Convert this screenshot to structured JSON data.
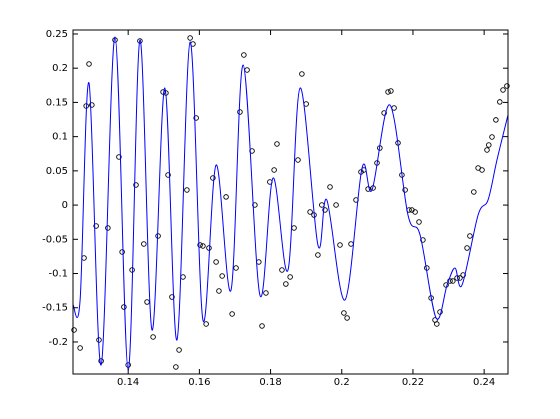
{
  "chart_data": {
    "type": "combo",
    "xlim": [
      0.1245,
      0.2467
    ],
    "ylim": [
      -0.2468,
      0.2558
    ],
    "xticks": [
      0.14,
      0.16,
      0.18,
      0.2,
      0.22,
      0.24
    ],
    "yticks": [
      -0.2,
      -0.15,
      -0.1,
      -0.05,
      0,
      0.05,
      0.1,
      0.15,
      0.2,
      0.25
    ],
    "grid": false,
    "series": [
      {
        "type": "scatter",
        "color": "#000000",
        "x": [
          0.1248,
          0.1265,
          0.1276,
          0.1282,
          0.129,
          0.1298,
          0.131,
          0.1318,
          0.1324,
          0.1343,
          0.1363,
          0.1374,
          0.1383,
          0.1388,
          0.14,
          0.1411,
          0.1422,
          0.1433,
          0.1444,
          0.1453,
          0.147,
          0.1484,
          0.1498,
          0.1506,
          0.1512,
          0.1523,
          0.1534,
          0.1543,
          0.1554,
          0.1565,
          0.1574,
          0.1582,
          0.1591,
          0.1602,
          0.161,
          0.1619,
          0.1627,
          0.1638,
          0.1647,
          0.1655,
          0.1664,
          0.1675,
          0.1692,
          0.1703,
          0.1714,
          0.1725,
          0.1734,
          0.1748,
          0.1756,
          0.1767,
          0.1776,
          0.1787,
          0.1798,
          0.181,
          0.1818,
          0.1832,
          0.1843,
          0.1855,
          0.1866,
          0.1877,
          0.1888,
          0.19,
          0.1911,
          0.1922,
          0.1933,
          0.1944,
          0.1953,
          0.1967,
          0.1984,
          0.1995,
          0.2006,
          0.2015,
          0.2026,
          0.204,
          0.2054,
          0.2062,
          0.2074,
          0.2088,
          0.2099,
          0.2107,
          0.2119,
          0.213,
          0.2138,
          0.2147,
          0.2158,
          0.2169,
          0.2178,
          0.2189,
          0.2197,
          0.2206,
          0.2217,
          0.2228,
          0.2239,
          0.2251,
          0.2262,
          0.2267,
          0.2276,
          0.2293,
          0.2304,
          0.2312,
          0.2324,
          0.2332,
          0.2341,
          0.2352,
          0.236,
          0.2371,
          0.2383,
          0.2394,
          0.2408,
          0.2413,
          0.2422,
          0.2433,
          0.2444,
          0.2453,
          0.2464
        ],
        "values": [
          -0.1825,
          -0.2088,
          -0.0773,
          0.1448,
          0.2062,
          0.1463,
          -0.0305,
          -0.1971,
          -0.2278,
          -0.0334,
          0.2412,
          0.0703,
          -0.0685,
          -0.1489,
          -0.2336,
          -0.0948,
          0.0294,
          0.2398,
          -0.0568,
          -0.1416,
          -0.1927,
          -0.0451,
          0.1653,
          0.1638,
          0.044,
          -0.1343,
          -0.2365,
          -0.2117,
          -0.105,
          0.0221,
          0.2442,
          0.2354,
          0.1273,
          -0.0583,
          -0.0597,
          -0.1737,
          -0.0627,
          0.0396,
          -0.0831,
          -0.1255,
          -0.1036,
          0.0119,
          -0.1591,
          -0.0919,
          0.136,
          0.2193,
          0.1974,
          0.0791,
          0.0002,
          -0.0831,
          -0.1766,
          -0.1284,
          0.0338,
          0.0513,
          0.0893,
          -0.0948,
          -0.1153,
          -0.105,
          -0.0334,
          0.0659,
          0.1916,
          0.1477,
          -0.0101,
          -0.0145,
          -0.0729,
          0.0002,
          -0.0071,
          0.0265,
          0.0002,
          -0.0583,
          -0.1576,
          -0.1649,
          -0.0568,
          0.0075,
          0.0484,
          0.0513,
          0.0235,
          0.025,
          0.0615,
          0.0834,
          0.1346,
          0.1653,
          0.1667,
          0.1419,
          0.0908,
          0.044,
          0.0221,
          -0.0071,
          -0.0071,
          -0.0101,
          -0.0247,
          -0.051,
          -0.0919,
          -0.1357,
          -0.1679,
          -0.1737,
          -0.1562,
          -0.1167,
          -0.1109,
          -0.1109,
          -0.1065,
          -0.1065,
          -0.1021,
          -0.0627,
          -0.0451,
          0.0192,
          0.0542,
          0.0513,
          0.0805,
          0.0878,
          0.0995,
          0.1244,
          0.1507,
          0.1682,
          0.174
        ]
      },
      {
        "type": "line",
        "color": "#0000ff",
        "x": [
          0.1245,
          0.1265,
          0.129,
          0.1324,
          0.1363,
          0.14,
          0.1433,
          0.1467,
          0.1503,
          0.1537,
          0.1574,
          0.161,
          0.1647,
          0.1689,
          0.1723,
          0.177,
          0.1807,
          0.1849,
          0.1883,
          0.1933,
          0.1958,
          0.2009,
          0.2057,
          0.2085,
          0.2135,
          0.2186,
          0.222,
          0.2265,
          0.2296,
          0.2318,
          0.2338,
          0.2383,
          0.2411,
          0.2436,
          0.2467
        ],
        "values": [
          -0.1459,
          -0.1386,
          0.1784,
          -0.2336,
          0.2456,
          -0.2409,
          0.2412,
          -0.1825,
          0.1711,
          -0.1971,
          0.2383,
          -0.1679,
          0.0586,
          -0.124,
          0.2047,
          -0.1313,
          0.0396,
          -0.0948,
          0.1711,
          -0.0583,
          0.0075,
          -0.1386,
          0.0542,
          0.0221,
          0.1463,
          -0.0145,
          -0.0437,
          -0.1649,
          -0.1167,
          -0.0919,
          -0.1167,
          -0.0145,
          0.0075,
          0.0659,
          0.1317
        ]
      }
    ]
  }
}
